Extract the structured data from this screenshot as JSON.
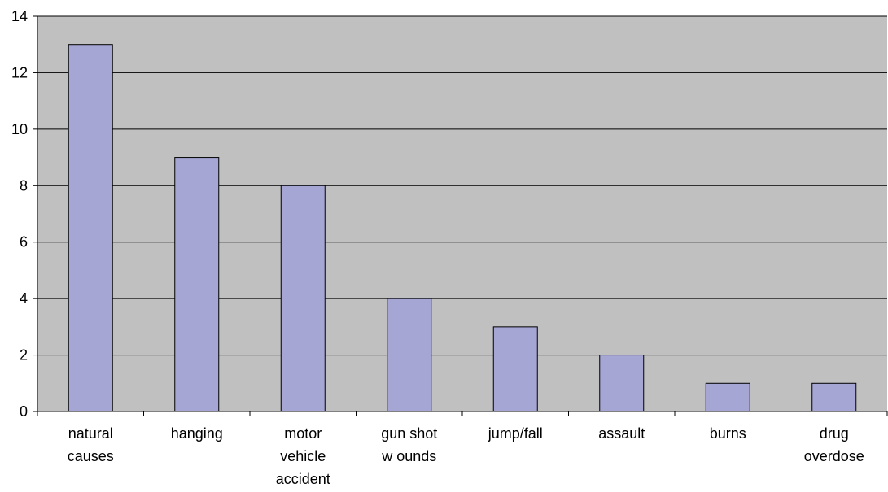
{
  "chart_data": {
    "type": "bar",
    "categories": [
      [
        "natural",
        "causes"
      ],
      [
        "hanging"
      ],
      [
        "motor",
        "vehicle",
        "accident"
      ],
      [
        "gun shot",
        "w ounds"
      ],
      [
        "jump/fall"
      ],
      [
        "assault"
      ],
      [
        "burns"
      ],
      [
        "drug",
        "overdose"
      ]
    ],
    "values": [
      13,
      9,
      8,
      4,
      3,
      2,
      1,
      1
    ],
    "yticks": [
      "0",
      "2",
      "4",
      "6",
      "8",
      "10",
      "12",
      "14"
    ],
    "ylim": [
      0,
      14
    ],
    "grid": true,
    "legend": "none",
    "colors": {
      "plot_background": "#c0c0c0",
      "bar_fill": "#a6a6d4",
      "bar_stroke": "#000000",
      "gridline": "#000000"
    }
  }
}
